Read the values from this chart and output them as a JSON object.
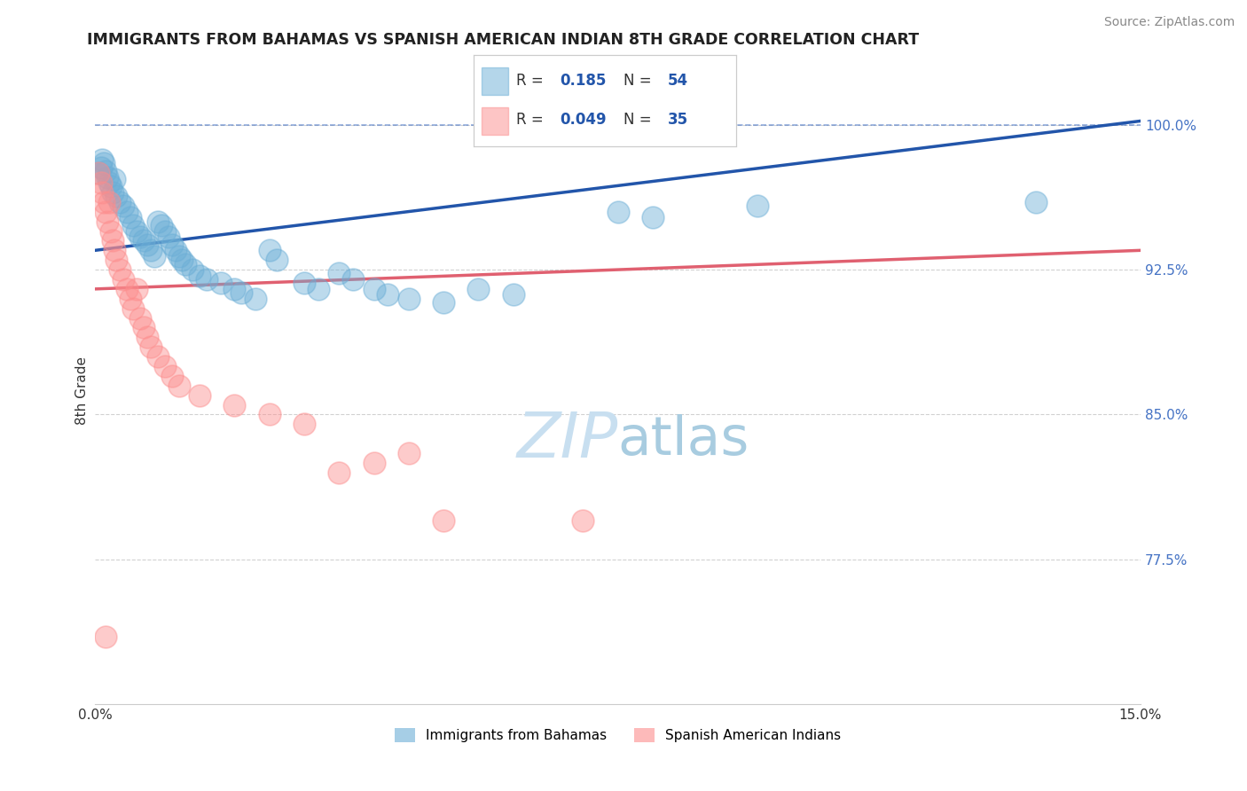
{
  "title": "IMMIGRANTS FROM BAHAMAS VS SPANISH AMERICAN INDIAN 8TH GRADE CORRELATION CHART",
  "source": "Source: ZipAtlas.com",
  "ylabel": "8th Grade",
  "xlim": [
    0.0,
    15.0
  ],
  "ylim": [
    70.0,
    102.5
  ],
  "yticks": [
    77.5,
    85.0,
    92.5,
    100.0
  ],
  "xticks": [
    0.0,
    15.0
  ],
  "xtick_labels": [
    "0.0%",
    "15.0%"
  ],
  "ytick_labels": [
    "77.5%",
    "85.0%",
    "92.5%",
    "100.0%"
  ],
  "blue_r": "0.185",
  "blue_n": "54",
  "pink_r": "0.049",
  "pink_n": "35",
  "blue_color": "#6baed6",
  "pink_color": "#fc8d8d",
  "blue_label": "Immigrants from Bahamas",
  "pink_label": "Spanish American Indians",
  "blue_scatter_x": [
    0.05,
    0.08,
    0.1,
    0.12,
    0.15,
    0.18,
    0.2,
    0.22,
    0.25,
    0.28,
    0.3,
    0.35,
    0.4,
    0.45,
    0.5,
    0.55,
    0.6,
    0.65,
    0.7,
    0.75,
    0.8,
    0.85,
    0.9,
    0.95,
    1.0,
    1.05,
    1.1,
    1.15,
    1.2,
    1.25,
    1.3,
    1.4,
    1.5,
    1.6,
    1.8,
    2.0,
    2.1,
    2.3,
    2.5,
    2.6,
    3.0,
    3.2,
    3.5,
    3.7,
    4.0,
    4.2,
    4.5,
    5.0,
    5.5,
    6.0,
    7.5,
    8.0,
    9.5,
    13.5
  ],
  "blue_scatter_y": [
    97.5,
    97.8,
    98.2,
    98.0,
    97.6,
    97.3,
    97.0,
    96.8,
    96.5,
    97.2,
    96.3,
    96.0,
    95.8,
    95.5,
    95.2,
    94.8,
    94.5,
    94.2,
    94.0,
    93.8,
    93.5,
    93.2,
    95.0,
    94.8,
    94.5,
    94.2,
    93.8,
    93.5,
    93.2,
    93.0,
    92.8,
    92.5,
    92.2,
    92.0,
    91.8,
    91.5,
    91.3,
    91.0,
    93.5,
    93.0,
    91.8,
    91.5,
    92.3,
    92.0,
    91.5,
    91.2,
    91.0,
    90.8,
    91.5,
    91.2,
    95.5,
    95.2,
    95.8,
    96.0
  ],
  "pink_scatter_x": [
    0.05,
    0.08,
    0.1,
    0.12,
    0.15,
    0.18,
    0.2,
    0.22,
    0.25,
    0.28,
    0.3,
    0.35,
    0.4,
    0.45,
    0.5,
    0.55,
    0.6,
    0.65,
    0.7,
    0.75,
    0.8,
    0.9,
    1.0,
    1.1,
    1.2,
    1.5,
    2.0,
    2.5,
    3.0,
    3.5,
    4.0,
    4.5,
    5.0,
    7.0,
    0.15
  ],
  "pink_scatter_y": [
    97.5,
    97.0,
    96.5,
    96.0,
    95.5,
    95.0,
    96.0,
    94.5,
    94.0,
    93.5,
    93.0,
    92.5,
    92.0,
    91.5,
    91.0,
    90.5,
    91.5,
    90.0,
    89.5,
    89.0,
    88.5,
    88.0,
    87.5,
    87.0,
    86.5,
    86.0,
    85.5,
    85.0,
    84.5,
    82.0,
    82.5,
    83.0,
    79.5,
    79.5,
    73.5
  ],
  "blue_line_x": [
    0.0,
    15.0
  ],
  "blue_line_y": [
    93.5,
    100.2
  ],
  "pink_line_x": [
    0.0,
    15.0
  ],
  "pink_line_y": [
    91.5,
    93.5
  ],
  "dashed_line_y": 100.0,
  "background_color": "#ffffff",
  "grid_color": "#cccccc",
  "watermark_color": "#c8dff0",
  "watermark_fontsize": 52
}
